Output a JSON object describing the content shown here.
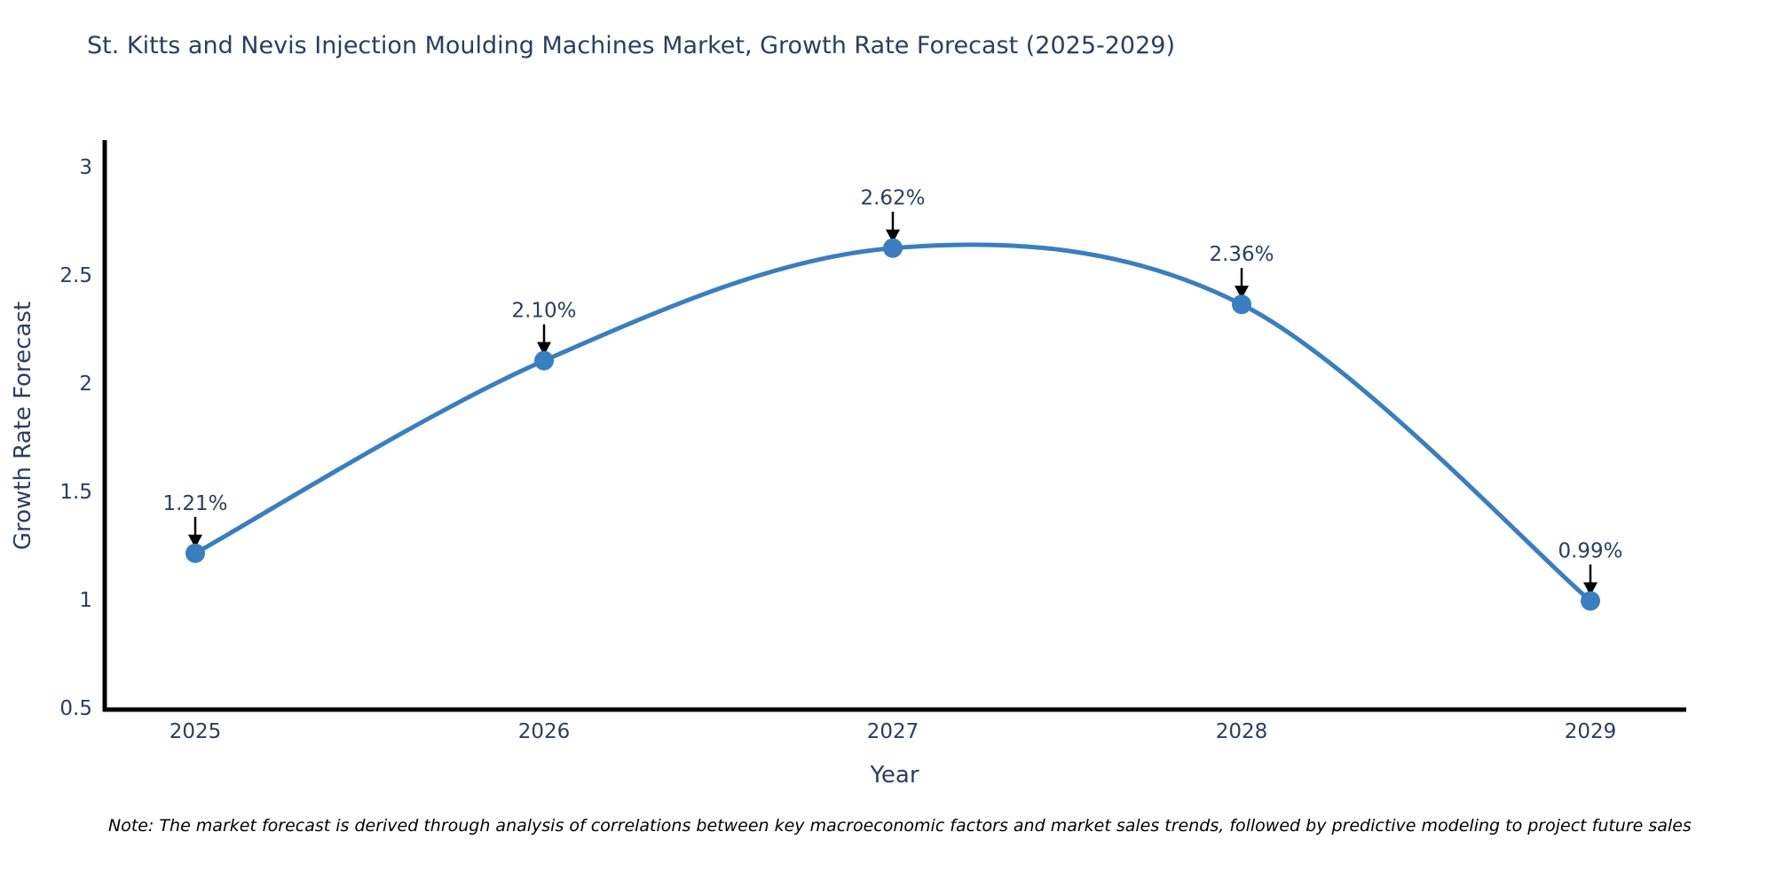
{
  "chart": {
    "title": "St. Kitts and Nevis Injection Moulding Machines Market, Growth Rate Forecast (2025-2029)",
    "note": "Note: The market forecast is derived through analysis of correlations between key macroeconomic factors and market sales trends, followed by predictive modeling to project future sales"
  },
  "chart_data": {
    "type": "line",
    "line_shape": "spline",
    "title": "St. Kitts and Nevis Injection Moulding Machines Market, Growth Rate Forecast (2025-2029)",
    "x": [
      2025,
      2026,
      2027,
      2028,
      2029
    ],
    "values": [
      1.21,
      2.1,
      2.62,
      2.36,
      0.99
    ],
    "point_labels": [
      "1.21%",
      "2.10%",
      "2.62%",
      "2.36%",
      "0.99%"
    ],
    "xlabel": "Year",
    "ylabel": "Growth Rate Forecast",
    "xticks": [
      "2025",
      "2026",
      "2027",
      "2028",
      "2029"
    ],
    "yticks": [
      0.5,
      1,
      1.5,
      2,
      2.5,
      3
    ],
    "ytick_labels": [
      "0.5",
      "1",
      "1.5",
      "2",
      "2.5",
      "3"
    ],
    "ylim": [
      0.5,
      3.1
    ],
    "grid": false,
    "legend": "none",
    "colors": {
      "line": "#3a7ebf",
      "marker": "#3a7ebf",
      "axis_line": "#000000",
      "tick_text": "#2a3f5f",
      "axis_title_text": "#2a3f5f",
      "annotation_text": "#2a3f5f",
      "annotation_arrow": "#000000",
      "note_text": "#000000",
      "background": "#ffffff"
    }
  }
}
